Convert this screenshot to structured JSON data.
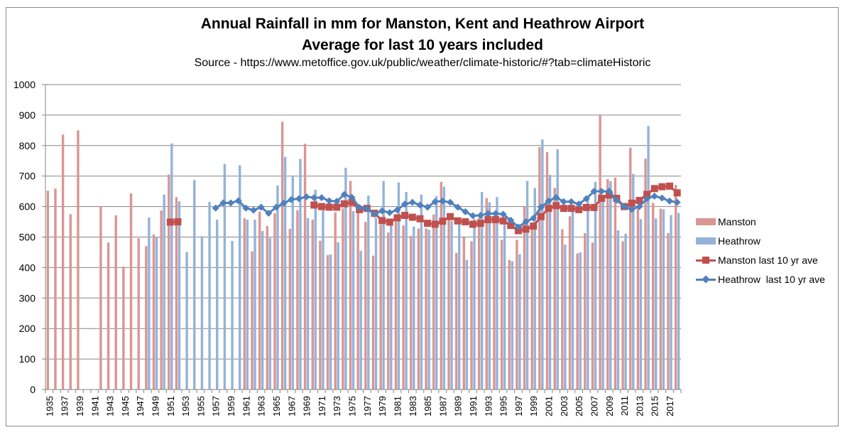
{
  "chart_data": {
    "type": "bar",
    "title": "Annual Rainfall in mm for Manston, Kent and Heathrow Airport",
    "subtitle": "Average for last 10 years included",
    "source": "Source - https://www.metoffice.gov.uk/public/weather/climate-historic/#?tab=climateHistoric",
    "xlabel": "",
    "ylabel": "",
    "ylim": [
      0,
      1000
    ],
    "yticks": [
      0,
      100,
      200,
      300,
      400,
      500,
      600,
      700,
      800,
      900,
      1000
    ],
    "grid": true,
    "legend_position": "right",
    "x_start": 1935,
    "x_end": 2018,
    "xtick_labels": [
      "1935",
      "1937",
      "1939",
      "1941",
      "1943",
      "1945",
      "1947",
      "1949",
      "1951",
      "1953",
      "1955",
      "1957",
      "1959",
      "1961",
      "1963",
      "1965",
      "1967",
      "1969",
      "1971",
      "1973",
      "1975",
      "1977",
      "1979",
      "1981",
      "1983",
      "1985",
      "1987",
      "1989",
      "1991",
      "1993",
      "1995",
      "1997",
      "1999",
      "2001",
      "2003",
      "2005",
      "2007",
      "2009",
      "2011",
      "2013",
      "2015",
      "2017"
    ],
    "colors": {
      "manston": "#d99694",
      "heathrow": "#95b3d7",
      "manston_avg": "#c0504d",
      "heathrow_avg": "#4f81bd",
      "grid": "#868686"
    },
    "series": [
      {
        "name": "Manston",
        "type": "bar",
        "values": [
          652,
          659,
          836,
          575,
          850,
          null,
          null,
          600,
          482,
          571,
          403,
          643,
          496,
          470,
          508,
          587,
          705,
          631,
          null,
          null,
          null,
          null,
          null,
          null,
          null,
          null,
          562,
          453,
          583,
          536,
          578,
          878,
          527,
          588,
          806,
          557,
          488,
          441,
          581,
          594,
          684,
          590,
          550,
          439,
          541,
          515,
          551,
          538,
          504,
          528,
          528,
          574,
          681,
          563,
          448,
          499,
          486,
          563,
          628,
          547,
          491,
          425,
          491,
          599,
          532,
          795,
          779,
          661,
          526,
          568,
          446,
          513,
          482,
          900,
          690,
          695,
          486,
          793,
          593,
          757,
          612,
          593,
          513,
          671
        ]
      },
      {
        "name": "Heathrow",
        "type": "bar",
        "values": [
          null,
          null,
          null,
          null,
          null,
          null,
          null,
          null,
          null,
          null,
          null,
          null,
          null,
          564,
          500,
          639,
          807,
          617,
          451,
          687,
          503,
          615,
          557,
          740,
          487,
          735,
          557,
          557,
          520,
          497,
          669,
          763,
          698,
          756,
          562,
          655,
          595,
          443,
          483,
          727,
          585,
          455,
          636,
          563,
          684,
          547,
          679,
          648,
          534,
          639,
          524,
          634,
          665,
          553,
          546,
          425,
          559,
          648,
          614,
          631,
          547,
          421,
          444,
          684,
          661,
          820,
          704,
          788,
          475,
          595,
          450,
          634,
          681,
          618,
          683,
          522,
          511,
          707,
          559,
          864,
          561,
          591,
          572,
          579
        ]
      },
      {
        "name": "Manston last 10 yr ave",
        "type": "line",
        "marker": "square",
        "values": [
          null,
          null,
          null,
          null,
          null,
          null,
          null,
          null,
          null,
          null,
          null,
          null,
          null,
          null,
          null,
          null,
          549,
          550,
          null,
          null,
          null,
          null,
          null,
          null,
          null,
          null,
          null,
          null,
          null,
          null,
          null,
          null,
          null,
          null,
          null,
          605,
          600,
          598,
          598,
          609,
          614,
          590,
          594,
          578,
          554,
          549,
          563,
          571,
          565,
          560,
          545,
          542,
          552,
          567,
          553,
          550,
          542,
          545,
          557,
          557,
          553,
          538,
          521,
          526,
          536,
          567,
          594,
          603,
          594,
          594,
          590,
          597,
          597,
          627,
          638,
          627,
          600,
          611,
          620,
          640,
          659,
          665,
          667,
          645
        ]
      },
      {
        "name": "Heathrow  last 10 yr ave",
        "type": "line",
        "marker": "diamond",
        "values": [
          null,
          null,
          null,
          null,
          null,
          null,
          null,
          null,
          null,
          null,
          null,
          null,
          null,
          null,
          null,
          null,
          null,
          null,
          null,
          null,
          null,
          null,
          595,
          612,
          612,
          619,
          595,
          588,
          598,
          578,
          598,
          611,
          623,
          626,
          632,
          629,
          629,
          619,
          617,
          640,
          630,
          597,
          593,
          575,
          586,
          580,
          589,
          608,
          614,
          605,
          598,
          616,
          618,
          614,
          598,
          583,
          570,
          571,
          577,
          577,
          575,
          555,
          533,
          550,
          562,
          598,
          618,
          630,
          616,
          616,
          608,
          626,
          650,
          650,
          650,
          621,
          600,
          591,
          600,
          626,
          634,
          628,
          618,
          614
        ]
      }
    ]
  },
  "legend": {
    "items": [
      {
        "label": "Manston"
      },
      {
        "label": "Heathrow"
      },
      {
        "label": "Manston last 10 yr ave"
      },
      {
        "label": "Heathrow  last 10 yr ave"
      }
    ]
  }
}
